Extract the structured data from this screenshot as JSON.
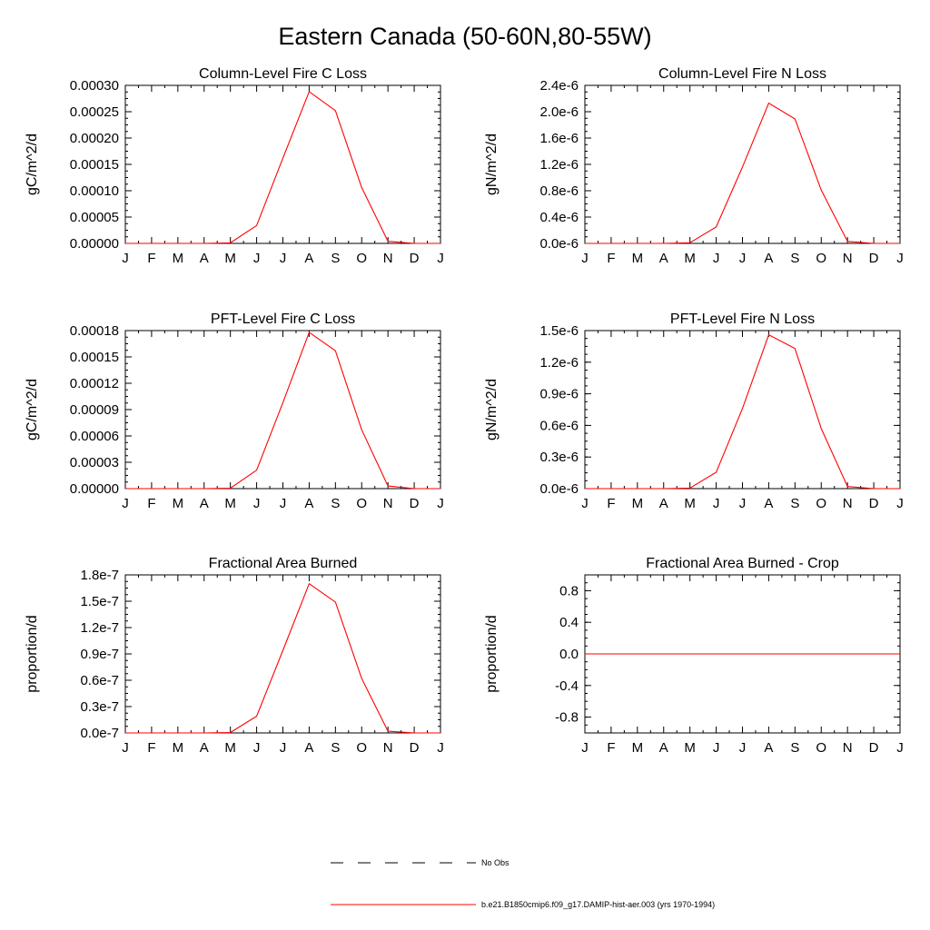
{
  "figure": {
    "title": "Eastern Canada (50-60N,80-55W)",
    "line_color": "#ff0000",
    "legend": {
      "placement": "bottom-center",
      "obs_label": "No Obs",
      "model_label": "b.e21.B1850cmip6.f09_g17.DAMIP-hist-aer.003 (yrs 1970-1994)"
    }
  },
  "chart_data": [
    {
      "type": "line",
      "title": "Column-Level Fire C Loss",
      "ylabel": "gC/m^2/d",
      "categories": [
        "J",
        "F",
        "M",
        "A",
        "M",
        "J",
        "J",
        "A",
        "S",
        "O",
        "N",
        "D",
        "J"
      ],
      "ylim": [
        0,
        0.0003
      ],
      "yticks": [
        0,
        5e-05,
        0.0001,
        0.00015,
        0.0002,
        0.00025,
        0.0003
      ],
      "yticklabels": [
        "0.00000",
        "0.00005",
        "0.00010",
        "0.00015",
        "0.00020",
        "0.00025",
        "0.00030"
      ],
      "series": [
        {
          "values": [
            0,
            0,
            0,
            0,
            1e-06,
            3.4e-05,
            0.000162,
            0.000288,
            0.000252,
            0.000106,
            4e-06,
            0,
            0
          ]
        }
      ]
    },
    {
      "type": "line",
      "title": "Column-Level Fire N Loss",
      "ylabel": "gN/m^2/d",
      "categories": [
        "J",
        "F",
        "M",
        "A",
        "M",
        "J",
        "J",
        "A",
        "S",
        "O",
        "N",
        "D",
        "J"
      ],
      "ylim": [
        0,
        2.4e-06
      ],
      "yticks": [
        0,
        4e-07,
        8e-07,
        1.2e-06,
        1.6e-06,
        2e-06,
        2.4e-06
      ],
      "yticklabels": [
        "0.0e-6",
        "0.4e-6",
        "0.8e-6",
        "1.2e-6",
        "1.6e-6",
        "2.0e-6",
        "2.4e-6"
      ],
      "series": [
        {
          "values": [
            0,
            0,
            0,
            0,
            1e-08,
            2.5e-07,
            1.16e-06,
            2.13e-06,
            1.89e-06,
            8.1e-07,
            3e-08,
            0,
            0
          ]
        }
      ]
    },
    {
      "type": "line",
      "title": "PFT-Level Fire C Loss",
      "ylabel": "gC/m^2/d",
      "categories": [
        "J",
        "F",
        "M",
        "A",
        "M",
        "J",
        "J",
        "A",
        "S",
        "O",
        "N",
        "D",
        "J"
      ],
      "ylim": [
        0,
        0.00018
      ],
      "yticks": [
        0,
        3e-05,
        6e-05,
        9e-05,
        0.00012,
        0.00015,
        0.00018
      ],
      "yticklabels": [
        "0.00000",
        "0.00003",
        "0.00006",
        "0.00009",
        "0.00012",
        "0.00015",
        "0.00018"
      ],
      "series": [
        {
          "values": [
            0,
            0,
            0,
            0,
            5e-07,
            2.1e-05,
            9.8e-05,
            0.000178,
            0.000157,
            6.7e-05,
            3e-06,
            0,
            0
          ]
        }
      ]
    },
    {
      "type": "line",
      "title": "PFT-Level Fire N Loss",
      "ylabel": "gN/m^2/d",
      "categories": [
        "J",
        "F",
        "M",
        "A",
        "M",
        "J",
        "J",
        "A",
        "S",
        "O",
        "N",
        "D",
        "J"
      ],
      "ylim": [
        0,
        1.5e-06
      ],
      "yticks": [
        0,
        3e-07,
        6e-07,
        9e-07,
        1.2e-06,
        1.5e-06
      ],
      "yticklabels": [
        "0.0e-6",
        "0.3e-6",
        "0.6e-6",
        "0.9e-6",
        "1.2e-6",
        "1.5e-6"
      ],
      "series": [
        {
          "values": [
            0,
            0,
            0,
            0,
            5e-09,
            1.55e-07,
            7.6e-07,
            1.46e-06,
            1.33e-06,
            5.7e-07,
            2e-08,
            0,
            0
          ]
        }
      ]
    },
    {
      "type": "line",
      "title": "Fractional Area Burned",
      "ylabel": "proportion/d",
      "categories": [
        "J",
        "F",
        "M",
        "A",
        "M",
        "J",
        "J",
        "A",
        "S",
        "O",
        "N",
        "D",
        "J"
      ],
      "ylim": [
        0,
        1.8e-07
      ],
      "yticks": [
        0,
        3e-08,
        6e-08,
        9e-08,
        1.2e-07,
        1.5e-07,
        1.8e-07
      ],
      "yticklabels": [
        "0.0e-7",
        "0.3e-7",
        "0.6e-7",
        "0.9e-7",
        "1.2e-7",
        "1.5e-7",
        "1.8e-7"
      ],
      "series": [
        {
          "values": [
            0,
            0,
            0,
            0,
            5e-10,
            1.9e-08,
            9.4e-08,
            1.7e-07,
            1.49e-07,
            6.2e-08,
            2e-09,
            0,
            0
          ]
        }
      ]
    },
    {
      "type": "line",
      "title": "Fractional Area Burned - Crop",
      "ylabel": "proportion/d",
      "categories": [
        "J",
        "F",
        "M",
        "A",
        "M",
        "J",
        "J",
        "A",
        "S",
        "O",
        "N",
        "D",
        "J"
      ],
      "ylim": [
        -1,
        1
      ],
      "yticks": [
        -0.8,
        -0.4,
        0,
        0.4,
        0.8
      ],
      "yticklabels": [
        "-0.8",
        "-0.4",
        "0.0",
        "0.4",
        "0.8"
      ],
      "series": [
        {
          "values": [
            0,
            0,
            0,
            0,
            0,
            0,
            0,
            0,
            0,
            0,
            0,
            0,
            0
          ]
        }
      ]
    }
  ]
}
